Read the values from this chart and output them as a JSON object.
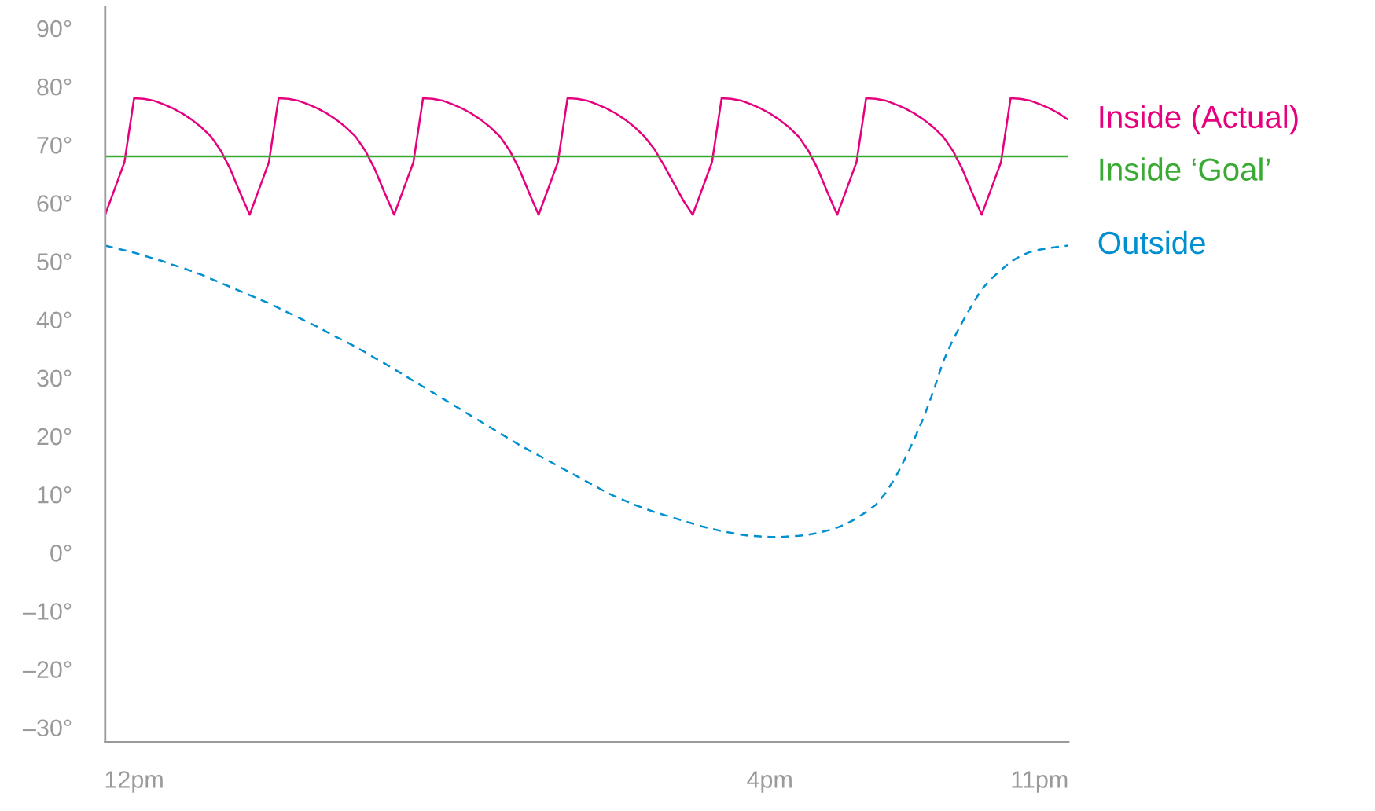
{
  "chart_data": {
    "type": "line",
    "ylim": [
      -32.5,
      93.6
    ],
    "categories": [
      null,
      null,
      null,
      "12pm",
      null,
      null,
      null,
      null,
      null,
      null,
      null,
      null,
      null,
      null,
      null,
      null,
      null,
      null,
      null,
      null,
      null,
      null,
      null,
      null,
      null,
      null,
      null,
      null,
      null,
      null,
      null,
      null,
      null,
      null,
      null,
      null,
      null,
      null,
      null,
      null,
      null,
      null,
      null,
      null,
      null,
      null,
      null,
      null,
      null,
      null,
      null,
      null,
      null,
      null,
      null,
      null,
      null,
      null,
      null,
      null,
      null,
      null,
      null,
      null,
      null,
      null,
      null,
      null,
      null,
      "4pm",
      null,
      null,
      null,
      null,
      null,
      null,
      null,
      null,
      null,
      null,
      null,
      null,
      null,
      null,
      null,
      null,
      null,
      null,
      null,
      null,
      null,
      null,
      null,
      null,
      null,
      null,
      null,
      "11pm",
      null,
      null,
      null
    ],
    "yticks": [
      {
        "value": -30,
        "label": "–30°"
      },
      {
        "value": -20,
        "label": "–20°"
      },
      {
        "value": -10,
        "label": "–10°"
      },
      {
        "value": 0,
        "label": "0°"
      },
      {
        "value": 10,
        "label": "10°"
      },
      {
        "value": 20,
        "label": "20°"
      },
      {
        "value": 30,
        "label": "30°"
      },
      {
        "value": 40,
        "label": "40°"
      },
      {
        "value": 50,
        "label": "50°"
      },
      {
        "value": 60,
        "label": "60°"
      },
      {
        "value": 70,
        "label": "70°"
      },
      {
        "value": 80,
        "label": "80°"
      },
      {
        "value": 90,
        "label": "90°"
      }
    ],
    "grid": false,
    "legend": false,
    "marker": "none",
    "ref_lines": [
      {
        "axis": "y",
        "value": 68,
        "label": "Inside ‘Goal’",
        "color": "#3aaa35",
        "line_style": "solid"
      }
    ],
    "series": [
      {
        "name": "Inside (Actual)",
        "color": "#e6007e",
        "line_style": "solid",
        "values": [
          58,
          62.5,
          67,
          78,
          77.9,
          77.6,
          77.0,
          76.3,
          75.4,
          74.3,
          73.0,
          71.4,
          69.0,
          65.8,
          61.8,
          58,
          62.5,
          67,
          78,
          77.9,
          77.6,
          77.0,
          76.3,
          75.4,
          74.3,
          73.0,
          71.4,
          69.0,
          65.8,
          61.8,
          58,
          62.5,
          67,
          78,
          77.9,
          77.6,
          77.0,
          76.3,
          75.4,
          74.3,
          73.0,
          71.4,
          69.0,
          65.8,
          61.8,
          58,
          62.5,
          67,
          78,
          77.9,
          77.6,
          77.0,
          76.3,
          75.4,
          74.3,
          73.0,
          71.4,
          69.3,
          66.5,
          63.5,
          60.5,
          58,
          62.5,
          67,
          78,
          77.9,
          77.6,
          77.0,
          76.3,
          75.4,
          74.3,
          73.0,
          71.4,
          69.0,
          65.8,
          61.8,
          58,
          62.5,
          67,
          78,
          77.9,
          77.6,
          77.0,
          76.3,
          75.4,
          74.3,
          73.0,
          71.4,
          69.0,
          65.8,
          61.8,
          58,
          62.5,
          67,
          78,
          77.9,
          77.6,
          77.0,
          76.3,
          75.4,
          74.3
        ]
      },
      {
        "name": "Outside",
        "color": "#0090d0",
        "line_style": "dashed",
        "values": [
          52.7,
          52.3,
          51.9,
          51.5,
          51.0,
          50.5,
          50.0,
          49.4,
          48.9,
          48.3,
          47.7,
          47.0,
          46.3,
          45.6,
          44.9,
          44.2,
          43.5,
          42.8,
          42.0,
          41.2,
          40.4,
          39.6,
          38.8,
          37.9,
          37.0,
          36.2,
          35.3,
          34.4,
          33.4,
          32.5,
          31.5,
          30.5,
          29.5,
          28.5,
          27.5,
          26.5,
          25.5,
          24.5,
          23.5,
          22.5,
          21.5,
          20.5,
          19.5,
          18.5,
          17.6,
          16.7,
          15.8,
          14.9,
          14.0,
          13.1,
          12.2,
          11.3,
          10.4,
          9.6,
          8.9,
          8.2,
          7.6,
          7.0,
          6.5,
          6.0,
          5.5,
          5.0,
          4.5,
          4.1,
          3.7,
          3.4,
          3.1,
          2.9,
          2.8,
          2.7,
          2.7,
          2.8,
          2.9,
          3.1,
          3.4,
          3.8,
          4.3,
          5.0,
          5.9,
          7.0,
          8.2,
          10.2,
          12.8,
          16.0,
          19.5,
          23.3,
          27.8,
          32.8,
          36.5,
          39.6,
          42.5,
          45.2,
          47.0,
          48.5,
          49.9,
          50.9,
          51.6,
          52.0,
          52.3,
          52.5,
          52.7
        ]
      }
    ]
  }
}
